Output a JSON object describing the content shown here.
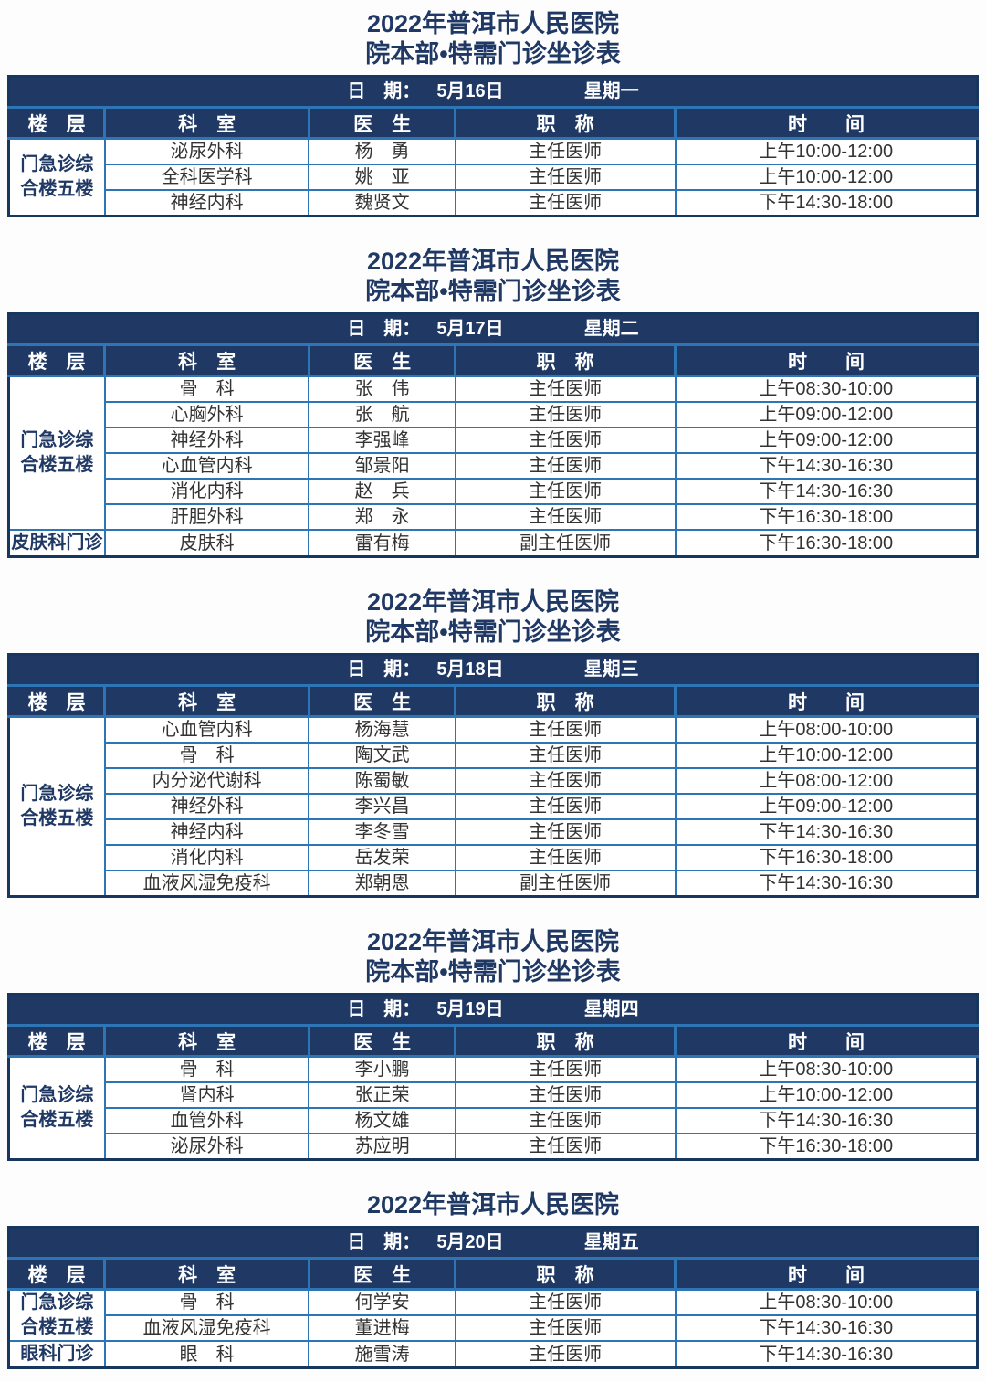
{
  "header_titles": {
    "line1": "2022年普洱市人民医院",
    "line2": "院本部•特需门诊坐诊表"
  },
  "date_label": "日　期：",
  "columns": {
    "floor": "楼　层",
    "dept": "科　室",
    "doctor": "医　生",
    "title": "职　称",
    "time": "时　　间"
  },
  "colors": {
    "navy": "#1f3864",
    "border_blue": "#2e75b6",
    "body_text": "#333333"
  },
  "tables": [
    {
      "date": "5月16日",
      "weekday": "星期一",
      "groups": [
        {
          "floor": "门急诊综\n合楼五楼",
          "rows": [
            {
              "dept": "泌尿外科",
              "doctor": "杨　勇",
              "title": "主任医师",
              "time": "上午10:00-12:00"
            },
            {
              "dept": "全科医学科",
              "doctor": "姚　亚",
              "title": "主任医师",
              "time": "上午10:00-12:00"
            },
            {
              "dept": "神经内科",
              "doctor": "魏贤文",
              "title": "主任医师",
              "time": "下午14:30-18:00"
            }
          ]
        }
      ]
    },
    {
      "date": "5月17日",
      "weekday": "星期二",
      "groups": [
        {
          "floor": "门急诊综\n合楼五楼",
          "rows": [
            {
              "dept": "骨　科",
              "doctor": "张　伟",
              "title": "主任医师",
              "time": "上午08:30-10:00"
            },
            {
              "dept": "心胸外科",
              "doctor": "张　航",
              "title": "主任医师",
              "time": "上午09:00-12:00"
            },
            {
              "dept": "神经外科",
              "doctor": "李强峰",
              "title": "主任医师",
              "time": "上午09:00-12:00"
            },
            {
              "dept": "心血管内科",
              "doctor": "邹景阳",
              "title": "主任医师",
              "time": "下午14:30-16:30"
            },
            {
              "dept": "消化内科",
              "doctor": "赵　兵",
              "title": "主任医师",
              "time": "下午14:30-16:30"
            },
            {
              "dept": "肝胆外科",
              "doctor": "郑　永",
              "title": "主任医师",
              "time": "下午16:30-18:00"
            }
          ]
        },
        {
          "floor": "皮肤科门诊",
          "rows": [
            {
              "dept": "皮肤科",
              "doctor": "雷有梅",
              "title": "副主任医师",
              "time": "下午16:30-18:00"
            }
          ]
        }
      ]
    },
    {
      "date": "5月18日",
      "weekday": "星期三",
      "groups": [
        {
          "floor": "门急诊综\n合楼五楼",
          "rows": [
            {
              "dept": "心血管内科",
              "doctor": "杨海慧",
              "title": "主任医师",
              "time": "上午08:00-10:00"
            },
            {
              "dept": "骨　科",
              "doctor": "陶文武",
              "title": "主任医师",
              "time": "上午10:00-12:00"
            },
            {
              "dept": "内分泌代谢科",
              "doctor": "陈蜀敏",
              "title": "主任医师",
              "time": "上午08:00-12:00"
            },
            {
              "dept": "神经外科",
              "doctor": "李兴昌",
              "title": "主任医师",
              "time": "上午09:00-12:00"
            },
            {
              "dept": "神经内科",
              "doctor": "李冬雪",
              "title": "主任医师",
              "time": "下午14:30-16:30"
            },
            {
              "dept": "消化内科",
              "doctor": "岳发荣",
              "title": "主任医师",
              "time": "下午16:30-18:00"
            },
            {
              "dept": "血液风湿免疫科",
              "doctor": "郑朝恩",
              "title": "副主任医师",
              "time": "下午14:30-16:30"
            }
          ]
        }
      ]
    },
    {
      "date": "5月19日",
      "weekday": "星期四",
      "groups": [
        {
          "floor": "门急诊综\n合楼五楼",
          "rows": [
            {
              "dept": "骨　科",
              "doctor": "李小鹏",
              "title": "主任医师",
              "time": "上午08:30-10:00"
            },
            {
              "dept": "肾内科",
              "doctor": "张正荣",
              "title": "主任医师",
              "time": "上午10:00-12:00"
            },
            {
              "dept": "血管外科",
              "doctor": "杨文雄",
              "title": "主任医师",
              "time": "下午14:30-16:30"
            },
            {
              "dept": "泌尿外科",
              "doctor": "苏应明",
              "title": "主任医师",
              "time": "下午16:30-18:00"
            }
          ]
        }
      ]
    },
    {
      "date": "5月20日",
      "weekday": "星期五",
      "groups": [
        {
          "floor": "门急诊综\n合楼五楼",
          "rows": [
            {
              "dept": "骨　科",
              "doctor": "何学安",
              "title": "主任医师",
              "time": "上午08:30-10:00"
            },
            {
              "dept": "血液风湿免疫科",
              "doctor": "董进梅",
              "title": "主任医师",
              "time": "下午14:30-16:30"
            }
          ]
        },
        {
          "floor": "眼科门诊",
          "rows": [
            {
              "dept": "眼　科",
              "doctor": "施雪涛",
              "title": "主任医师",
              "time": "下午14:30-16:30"
            }
          ]
        }
      ]
    }
  ]
}
